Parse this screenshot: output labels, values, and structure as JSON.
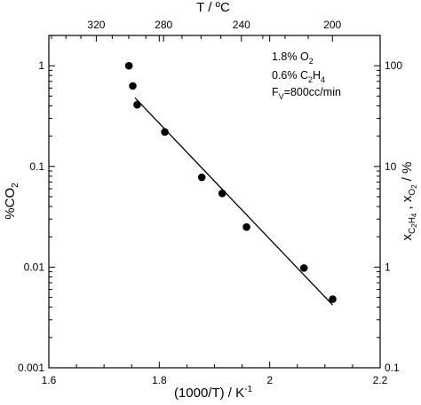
{
  "chart_data": {
    "type": "scatter",
    "x_axis": {
      "label": "(1000/T) / K",
      "label_exponent": "-1",
      "range": [
        1.6,
        2.2
      ],
      "ticks": [
        1.6,
        1.8,
        2,
        2.2
      ],
      "tick_labels": [
        "1.6",
        "1.8",
        "2",
        "2.2"
      ]
    },
    "top_axis": {
      "label": "T / ºC",
      "ticks_celsius": [
        320,
        280,
        240,
        200
      ],
      "tick_labels": [
        "320",
        "280",
        "240",
        "200"
      ]
    },
    "y_axis": {
      "label": "%CO",
      "label_subscript": "2",
      "scale": "log",
      "range": [
        0.001,
        2
      ],
      "ticks": [
        0.001,
        0.01,
        0.1,
        1
      ],
      "tick_labels": [
        "0.001",
        "0.01",
        "0.1",
        "1"
      ]
    },
    "y2_axis": {
      "label_parts": [
        "x",
        "C",
        "2",
        "H",
        "4",
        " , x",
        "O",
        "2",
        " / %"
      ],
      "scale": "log",
      "range": [
        0.1,
        200
      ],
      "ticks": [
        0.1,
        1,
        10,
        100
      ],
      "tick_labels": [
        "0.1",
        "1",
        "10",
        "100"
      ]
    },
    "annotations": {
      "line1_text": "1.8% O",
      "line1_sub": "2",
      "line2_text_a": "0.6% C",
      "line2_sub_a": "2",
      "line2_text_b": "H",
      "line2_sub_b": "4",
      "line3_text_a": "F",
      "line3_sub": "V",
      "line3_text_b": "=800cc/min"
    },
    "points": [
      {
        "x": 1.745,
        "y": 1.0
      },
      {
        "x": 1.752,
        "y": 0.63
      },
      {
        "x": 1.76,
        "y": 0.41
      },
      {
        "x": 1.81,
        "y": 0.22
      },
      {
        "x": 1.877,
        "y": 0.078
      },
      {
        "x": 1.914,
        "y": 0.054
      },
      {
        "x": 1.958,
        "y": 0.025
      },
      {
        "x": 2.062,
        "y": 0.0098
      },
      {
        "x": 2.114,
        "y": 0.0048
      }
    ],
    "fit_line": [
      {
        "x": 1.756,
        "y": 0.48
      },
      {
        "x": 2.114,
        "y": 0.0042
      }
    ],
    "grid": false,
    "legend": "none"
  }
}
